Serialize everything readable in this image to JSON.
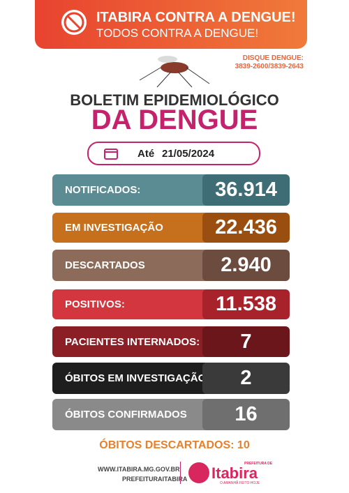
{
  "header": {
    "title": "ITABIRA CONTRA A DENGUE!",
    "subtitle": "TODOS CONTRA A DENGUE!"
  },
  "hotline": {
    "label": "DISQUE DENGUE:",
    "numbers": "3839-2600/3839-2643"
  },
  "bulletin": {
    "line1": "BOLETIM EPIDEMIOLÓGICO",
    "line2": "DA DENGUE"
  },
  "date": {
    "label": "Até",
    "value": "21/05/2024"
  },
  "stats": [
    {
      "label": "NOTIFICADOS:",
      "value": "36.914"
    },
    {
      "label": "EM INVESTIGAÇÃO",
      "value": "22.436"
    },
    {
      "label": "DESCARTADOS",
      "value": "2.940"
    },
    {
      "label": "POSITIVOS:",
      "value": "11.538"
    },
    {
      "label": "PACIENTES INTERNADOS:",
      "value": "7"
    },
    {
      "label": "ÓBITOS EM INVESTIGAÇÃO",
      "value": "2"
    },
    {
      "label": "ÓBITOS CONFIRMADOS",
      "value": "16"
    }
  ],
  "footer": {
    "discarded": "ÓBITOS DESCARTADOS: 10",
    "website": "WWW.ITABIRA.MG.GOV.BR",
    "social": "PREFEITURAITABIRA",
    "logo_top": "PREFEITURA DE",
    "logo": "Itabira",
    "tagline": "O AMANHÃ FEITO HOJE"
  }
}
